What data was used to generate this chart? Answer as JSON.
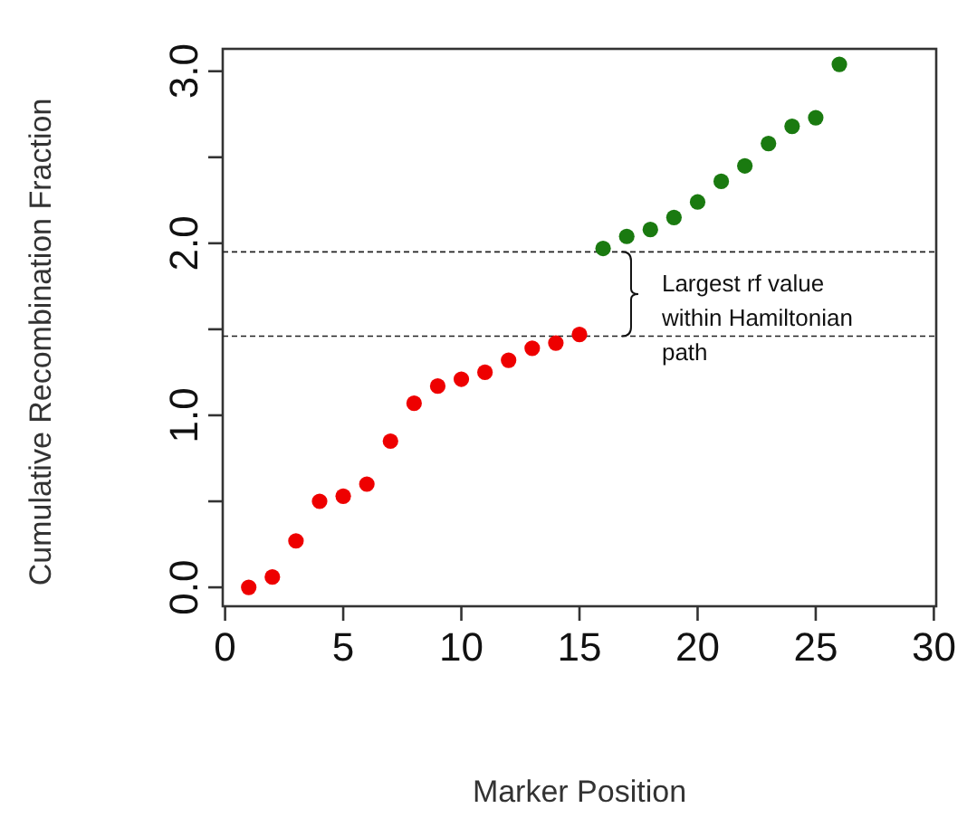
{
  "chart_data": {
    "type": "scatter",
    "xlabel": "Marker Position",
    "ylabel": "Cumulative Recombination Fraction",
    "xlim": [
      -0.1,
      30.1
    ],
    "xticks": [
      0,
      5,
      10,
      15,
      20,
      25,
      30
    ],
    "ylim": [
      -0.11,
      3.13
    ],
    "yticks": [
      {
        "value": 0,
        "label": "0.0"
      },
      {
        "value": 0.5,
        "label": null
      },
      "1.0",
      {
        "value": 1.5,
        "label": null
      },
      {
        "value": 2,
        "label": "2.0"
      },
      {
        "value": 2.5,
        "label": null
      },
      {
        "value": 3,
        "label": "3.0"
      }
    ],
    "marker": "circle",
    "series": [
      {
        "color": "#ee0000",
        "x": [
          1,
          2,
          3,
          4,
          5,
          6,
          7,
          8,
          9,
          10,
          11,
          12,
          13,
          14,
          15
        ],
        "values": [
          0.0,
          0.06,
          0.27,
          0.5,
          0.53,
          0.6,
          0.85,
          1.07,
          1.17,
          1.21,
          1.25,
          1.32,
          1.39,
          1.42,
          1.47
        ]
      },
      {
        "color": "#1a7a10",
        "x": [
          16,
          17,
          18,
          19,
          20,
          21,
          22,
          23,
          24,
          25,
          26
        ],
        "values": [
          1.97,
          2.04,
          2.08,
          2.15,
          2.24,
          2.36,
          2.45,
          2.58,
          2.68,
          2.73,
          3.04
        ]
      }
    ],
    "ref_lines": [
      {
        "axis": "y",
        "value": 1.95,
        "line_style": "dashed"
      },
      {
        "axis": "y",
        "value": 1.46,
        "line_style": "dashed"
      }
    ],
    "annotations": [
      "Largest rf value within Hamiltonian path"
    ]
  }
}
